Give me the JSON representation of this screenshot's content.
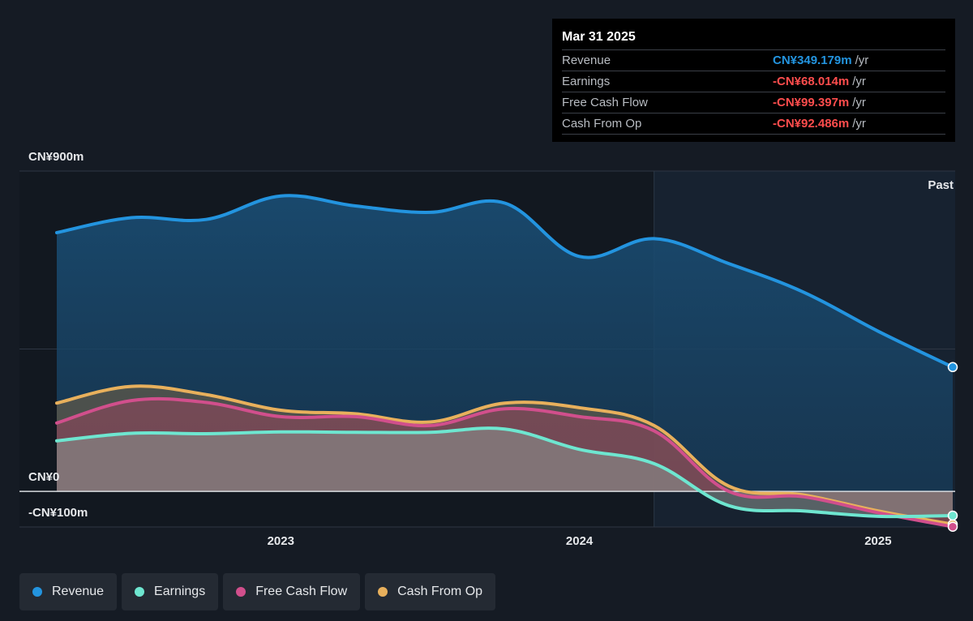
{
  "tooltip": {
    "date": "Mar 31 2025",
    "rows": [
      {
        "label": "Revenue",
        "value": "CN¥349.179m",
        "unit": "/yr",
        "color": "#2394df"
      },
      {
        "label": "Earnings",
        "value": "-CN¥68.014m",
        "unit": "/yr",
        "color": "#ff4d4d"
      },
      {
        "label": "Free Cash Flow",
        "value": "-CN¥99.397m",
        "unit": "/yr",
        "color": "#ff4d4d"
      },
      {
        "label": "Cash From Op",
        "value": "-CN¥92.486m",
        "unit": "/yr",
        "color": "#ff4d4d"
      }
    ]
  },
  "past_label": "Past",
  "legend": [
    {
      "label": "Revenue",
      "color": "#2394df"
    },
    {
      "label": "Earnings",
      "color": "#6ee6d0"
    },
    {
      "label": "Free Cash Flow",
      "color": "#d14f8c"
    },
    {
      "label": "Cash From Op",
      "color": "#e8b05c"
    }
  ],
  "chart_data": {
    "type": "area",
    "y_tick_labels": [
      "CN¥900m",
      "CN¥0",
      "-CN¥100m"
    ],
    "ylim": [
      -100,
      900
    ],
    "x_tick_labels": [
      "2023",
      "2024",
      "2025"
    ],
    "x_ticks": [
      2023.0,
      2024.0,
      2025.0
    ],
    "xlim": [
      2022.25,
      2025.25
    ],
    "past_from": 2024.25,
    "grid": true,
    "legend_position": "bottom-left",
    "series": [
      {
        "name": "Revenue",
        "color": "#2394df",
        "x": [
          2022.25,
          2022.5,
          2022.75,
          2023.0,
          2023.25,
          2023.5,
          2023.75,
          2024.0,
          2024.25,
          2024.5,
          2024.75,
          2025.0,
          2025.25
        ],
        "y": [
          727,
          769,
          764,
          830,
          802,
          784,
          810,
          660,
          710,
          640,
          560,
          450,
          349.179
        ]
      },
      {
        "name": "Earnings",
        "color": "#6ee6d0",
        "x": [
          2022.25,
          2022.5,
          2022.75,
          2023.0,
          2023.25,
          2023.5,
          2023.75,
          2024.0,
          2024.25,
          2024.5,
          2024.75,
          2025.0,
          2025.25
        ],
        "y": [
          142,
          163,
          162,
          167,
          166,
          166,
          175,
          118,
          78,
          -40,
          -55,
          -70,
          -68.014
        ]
      },
      {
        "name": "Free Cash Flow",
        "color": "#d14f8c",
        "x": [
          2022.25,
          2022.5,
          2022.75,
          2023.0,
          2023.25,
          2023.5,
          2023.75,
          2024.0,
          2024.25,
          2024.5,
          2024.75,
          2025.0,
          2025.25
        ],
        "y": [
          192,
          255,
          250,
          210,
          210,
          185,
          232,
          210,
          170,
          0,
          -15,
          -60,
          -99.397
        ]
      },
      {
        "name": "Cash From Op",
        "color": "#e8b05c",
        "x": [
          2022.25,
          2022.5,
          2022.75,
          2023.0,
          2023.25,
          2023.5,
          2023.75,
          2024.0,
          2024.25,
          2024.5,
          2024.75,
          2025.0,
          2025.25
        ],
        "y": [
          248,
          295,
          272,
          228,
          218,
          195,
          248,
          235,
          185,
          15,
          -10,
          -55,
          -92.486
        ]
      }
    ]
  }
}
